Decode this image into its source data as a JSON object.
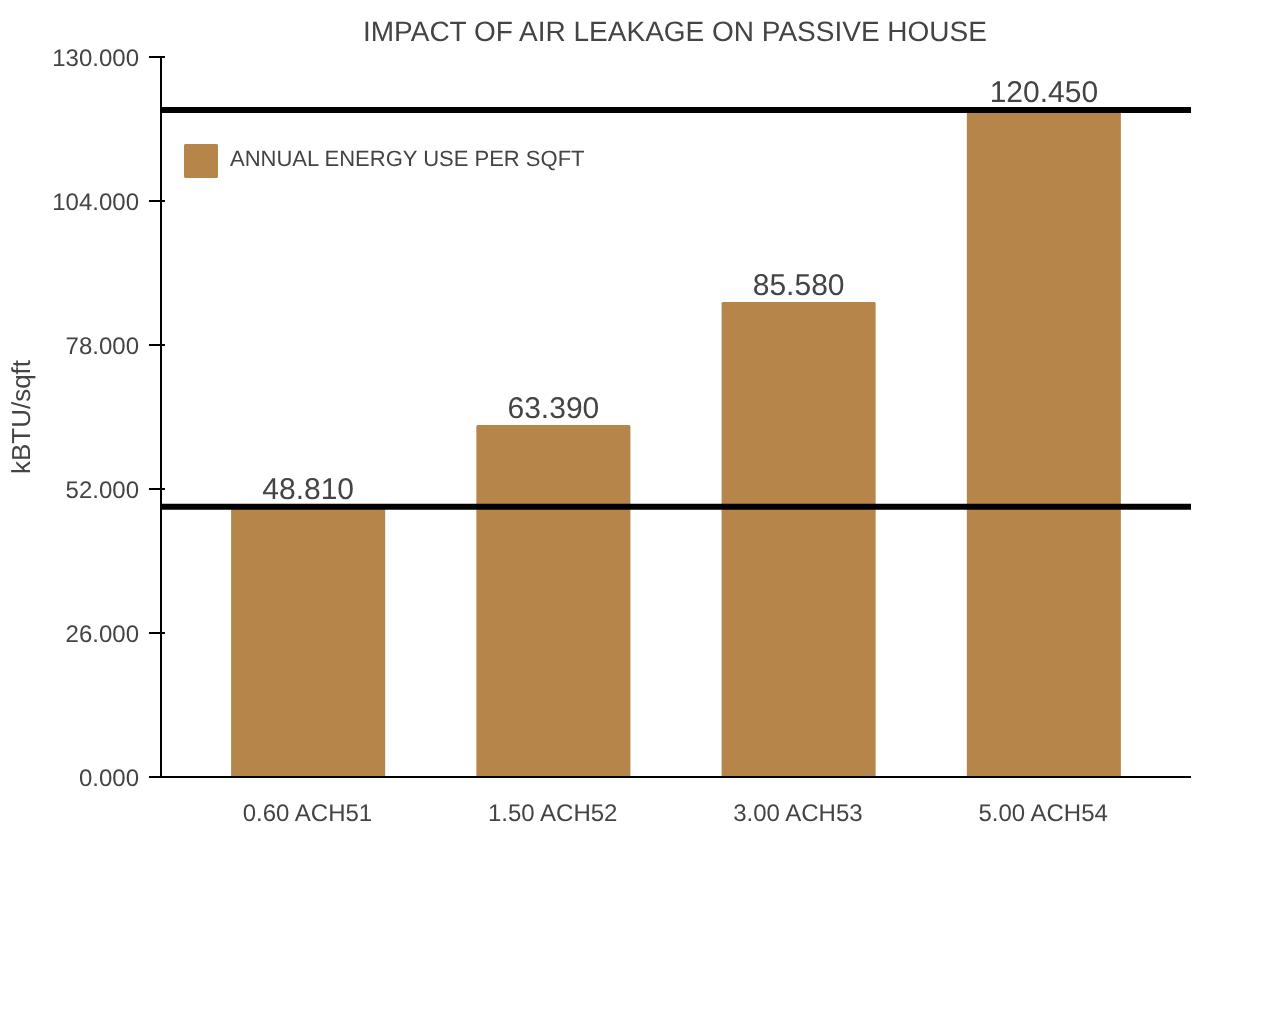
{
  "chart_data": {
    "type": "bar",
    "title": "IMPACT OF AIR LEAKAGE ON PASSIVE HOUSE",
    "ylabel": "kBTU/sqft",
    "categories": [
      "0.60 ACH51",
      "1.50 ACH52",
      "3.00 ACH53",
      "5.00 ACH54"
    ],
    "series": [
      {
        "name": "ANNUAL ENERGY USE PER SQFT",
        "color": "#b5854a",
        "values": [
          48.81,
          63.39,
          85.58,
          120.45
        ]
      }
    ],
    "value_labels": [
      "48.810",
      "63.390",
      "85.580",
      "120.450"
    ],
    "ylim": [
      0,
      130
    ],
    "yticks": [
      {
        "value": 0,
        "label": "0.000"
      },
      {
        "value": 26,
        "label": "26.000"
      },
      {
        "value": 52,
        "label": "52.000"
      },
      {
        "value": 78,
        "label": "78.000"
      },
      {
        "value": 104,
        "label": "104.000"
      },
      {
        "value": 130,
        "label": "130.000"
      }
    ],
    "ref_lines": [
      {
        "axis": "y",
        "value": 120.45,
        "color": "#000000"
      },
      {
        "axis": "y",
        "value": 48.81,
        "color": "#000000"
      }
    ],
    "grid": false,
    "legend": "top left"
  }
}
